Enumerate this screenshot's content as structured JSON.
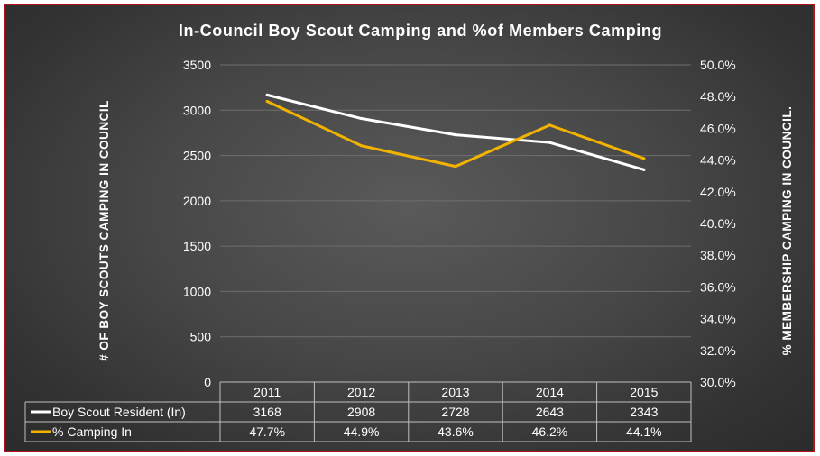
{
  "chart_data": {
    "type": "line",
    "title": "In-Council Boy Scout Camping and %of Members Camping",
    "ylabel": "# OF BOY SCOUTS CAMPING IN COUNCIL",
    "y2label": "% MEMBERSHIP CAMPING IN COUNCIL.",
    "categories": [
      "2011",
      "2012",
      "2013",
      "2014",
      "2015"
    ],
    "ylim": [
      0,
      3500
    ],
    "y_ticks": [
      "0",
      "500",
      "1000",
      "1500",
      "2000",
      "2500",
      "3000",
      "3500"
    ],
    "y2lim": [
      30.0,
      50.0
    ],
    "y2_ticks": [
      "30.0%",
      "32.0%",
      "34.0%",
      "36.0%",
      "38.0%",
      "40.0%",
      "42.0%",
      "44.0%",
      "46.0%",
      "48.0%",
      "50.0%"
    ],
    "grid": true,
    "legend": "data-table",
    "series": [
      {
        "name": "Boy Scout Resident (In)",
        "axis": "left",
        "color": "#ffffff",
        "values": [
          3168,
          2908,
          2728,
          2643,
          2343
        ],
        "labels": [
          "3168",
          "2908",
          "2728",
          "2643",
          "2343"
        ]
      },
      {
        "name": "% Camping In",
        "axis": "right",
        "color": "#f2b300",
        "values": [
          47.7,
          44.9,
          43.6,
          46.2,
          44.1
        ],
        "labels": [
          "47.7%",
          "44.9%",
          "43.6%",
          "46.2%",
          "44.1%"
        ]
      }
    ]
  }
}
